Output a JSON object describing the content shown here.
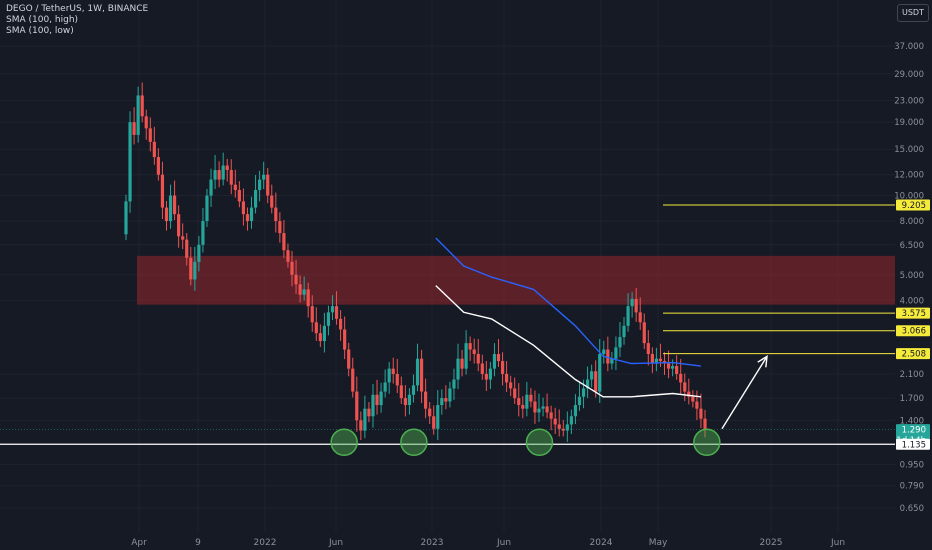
{
  "header": {
    "title": "DEGO / TetherUS, 1W, BINANCE",
    "indicator1": "SMA (100, high)",
    "indicator2": "SMA (100, low)"
  },
  "currency_button": "USDT",
  "colors": {
    "background": "#161a25",
    "up_candle": "#26a69a",
    "down_candle": "#ef5350",
    "sma_high": "#2962ff",
    "sma_low": "#ffffff",
    "resistance_zone": "#b2282e",
    "target_lines": "#f5eb3b",
    "support_line": "#ffffff",
    "circles": "#4caf50"
  },
  "chart_data": {
    "type": "candlestick",
    "symbol": "DEGO / TetherUS",
    "interval": "1W",
    "exchange": "BINANCE",
    "y_scale": "log",
    "x_tick_labels": [
      "Apr",
      "9",
      "2022",
      "Jun",
      "2023",
      "Jun",
      "2024",
      "May",
      "2025",
      "Jun"
    ],
    "y_tick_labels": [
      "37.000",
      "29.000",
      "23.000",
      "19.000",
      "15.000",
      "12.000",
      "10.000",
      "8.000",
      "6.500",
      "5.000",
      "4.000",
      "2.100",
      "1.700",
      "1.400",
      "0.950",
      "0.790",
      "0.650"
    ],
    "price_labels": [
      {
        "value": 9.205,
        "text": "9.205",
        "kind": "target"
      },
      {
        "value": 3.575,
        "text": "3.575",
        "kind": "target"
      },
      {
        "value": 3.066,
        "text": "3.066",
        "kind": "target"
      },
      {
        "value": 2.508,
        "text": "2.508",
        "kind": "target"
      },
      {
        "value": 1.29,
        "text": "1.290",
        "kind": "last_price"
      },
      {
        "value": 1.135,
        "text": "1.135",
        "kind": "support"
      }
    ],
    "countdown_label": "1d 14h",
    "resistance_zone": {
      "low": 3.85,
      "high": 5.9
    },
    "support_level": 1.135,
    "target_levels": [
      9.205,
      3.575,
      3.066,
      2.508
    ],
    "support_touches": [
      "2022-06",
      "2022-11",
      "2023-08",
      "2024-08"
    ],
    "sma_high": [
      {
        "x": "2023-01",
        "y": 6.9
      },
      {
        "x": "2023-03",
        "y": 5.4
      },
      {
        "x": "2023-05",
        "y": 4.9
      },
      {
        "x": "2023-08",
        "y": 4.4
      },
      {
        "x": "2023-11",
        "y": 3.2
      },
      {
        "x": "2024-01",
        "y": 2.45
      },
      {
        "x": "2024-03",
        "y": 2.3
      },
      {
        "x": "2024-06",
        "y": 2.32
      },
      {
        "x": "2024-08",
        "y": 2.25
      }
    ],
    "sma_low": [
      {
        "x": "2023-01",
        "y": 4.55
      },
      {
        "x": "2023-03",
        "y": 3.6
      },
      {
        "x": "2023-05",
        "y": 3.4
      },
      {
        "x": "2023-08",
        "y": 2.7
      },
      {
        "x": "2023-11",
        "y": 2.0
      },
      {
        "x": "2024-01",
        "y": 1.72
      },
      {
        "x": "2024-03",
        "y": 1.72
      },
      {
        "x": "2024-06",
        "y": 1.77
      },
      {
        "x": "2024-08",
        "y": 1.72
      }
    ],
    "projection": {
      "from": 1.3,
      "to": 2.45
    },
    "series": [
      {
        "name": "DEGO / TetherUS",
        "weekly_close": [
          9.5,
          19,
          17,
          24,
          20,
          18,
          16,
          14,
          12,
          9,
          8,
          10,
          8.5,
          7,
          6.8,
          5.8,
          4.8,
          5.6,
          6.5,
          8,
          10,
          11.5,
          12.5,
          11.5,
          13,
          12.5,
          11,
          10.5,
          9.5,
          8.5,
          8,
          9,
          10.5,
          11.5,
          12,
          10,
          9,
          8,
          7.2,
          6.2,
          5.6,
          5,
          4.6,
          4.2,
          4.4,
          3.8,
          3.3,
          3,
          2.8,
          3.2,
          3.6,
          3.8,
          3.4,
          3.1,
          2.6,
          2.2,
          1.8,
          1.4,
          1.28,
          1.55,
          1.45,
          1.75,
          1.6,
          1.8,
          1.95,
          2.2,
          2.1,
          1.9,
          1.7,
          1.6,
          1.75,
          1.9,
          2.4,
          1.8,
          1.55,
          1.45,
          1.3,
          1.6,
          1.7,
          1.65,
          1.85,
          2.0,
          2.4,
          2.2,
          2.75,
          2.6,
          2.5,
          2.3,
          2.1,
          2.0,
          2.2,
          2.5,
          2.35,
          2.1,
          1.95,
          1.85,
          1.7,
          1.6,
          1.55,
          1.75,
          1.65,
          1.5,
          1.55,
          1.58,
          1.5,
          1.42,
          1.35,
          1.3,
          1.28,
          1.35,
          1.45,
          1.6,
          1.72,
          1.85,
          2.0,
          2.15,
          1.8,
          2.5,
          2.6,
          2.3,
          2.4,
          2.65,
          2.9,
          3.2,
          3.8,
          4.05,
          3.6,
          3.3,
          2.75,
          2.5,
          2.3,
          2.4,
          2.35,
          2.3,
          2.2,
          2.25,
          2.1,
          1.95,
          1.8,
          1.72,
          1.65,
          1.55,
          1.42,
          1.29
        ]
      }
    ]
  }
}
